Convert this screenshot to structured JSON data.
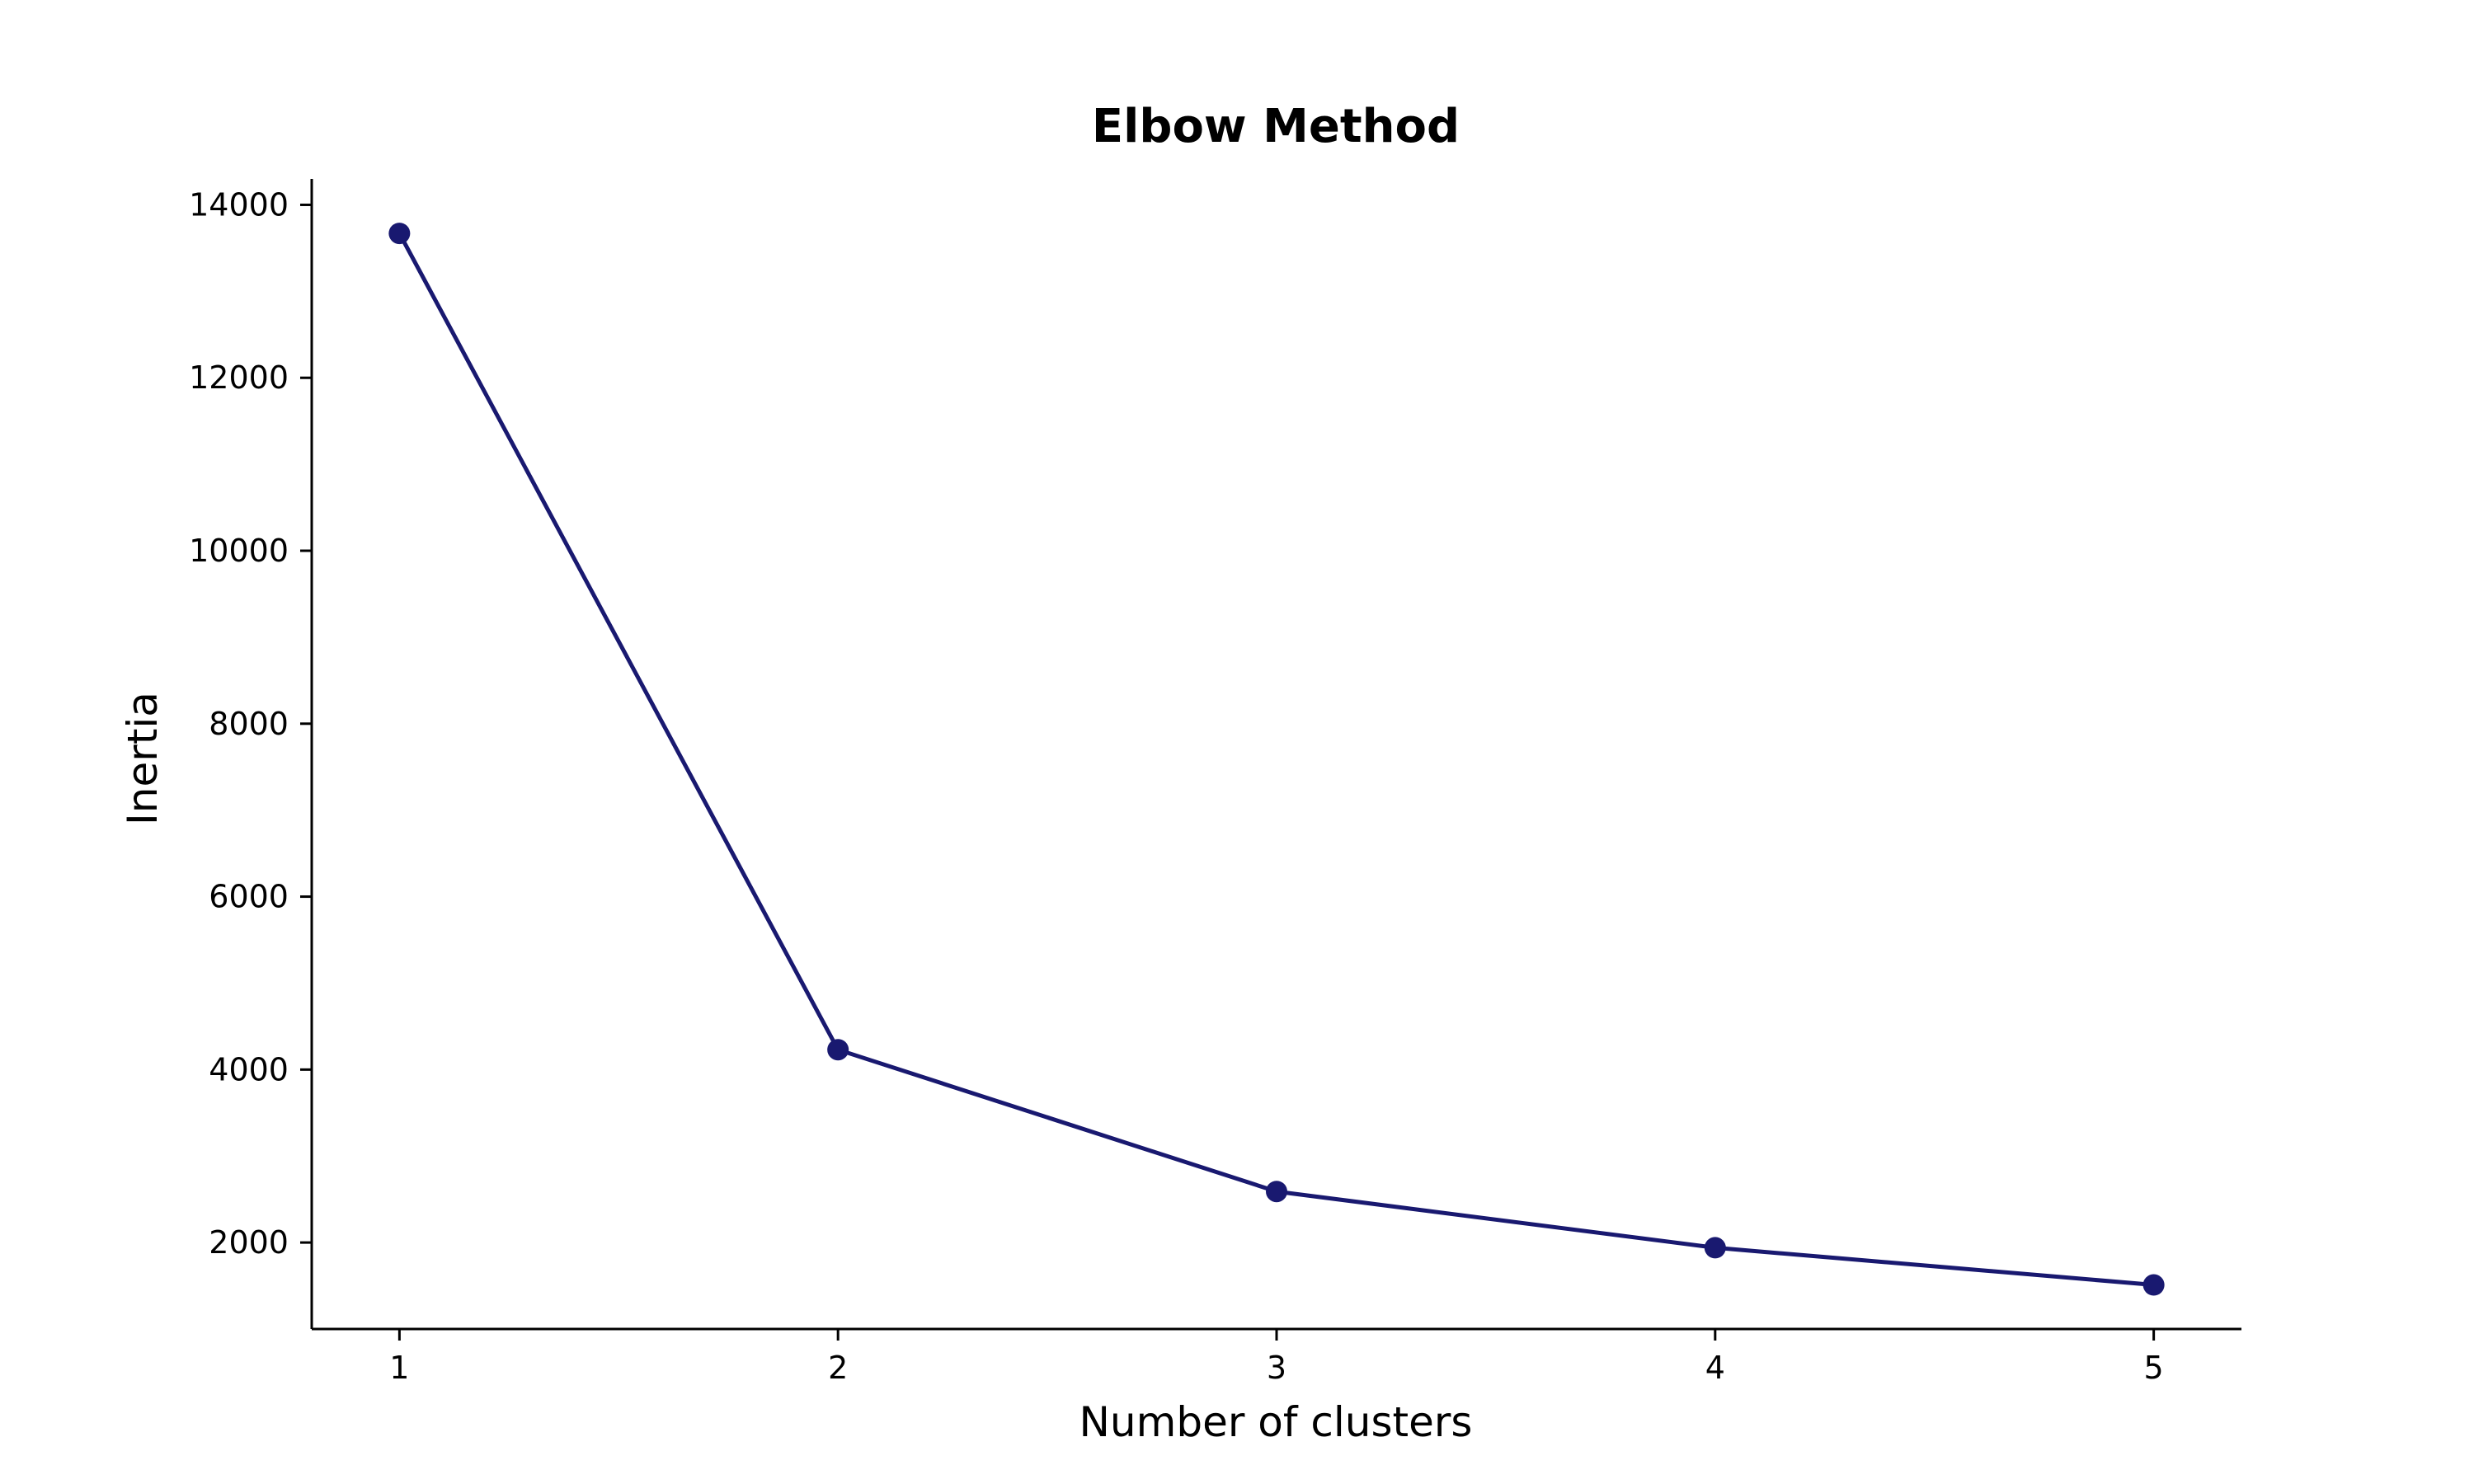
{
  "chart_data": {
    "type": "line",
    "title": "Elbow Method",
    "xlabel": "Number of clusters",
    "ylabel": "Inertia",
    "x": [
      1,
      2,
      3,
      4,
      5
    ],
    "series": [
      {
        "values": [
          13670,
          4230,
          2590,
          1940,
          1510
        ],
        "color": "#191970",
        "marker": "circle"
      }
    ],
    "xlim": [
      0.8,
      5.2
    ],
    "ylim": [
      1000,
      14300
    ],
    "xticks": [
      1,
      2,
      3,
      4,
      5
    ],
    "yticks": [
      2000,
      4000,
      6000,
      8000,
      10000,
      12000,
      14000
    ],
    "grid": false,
    "spines": [
      "left",
      "bottom"
    ]
  }
}
